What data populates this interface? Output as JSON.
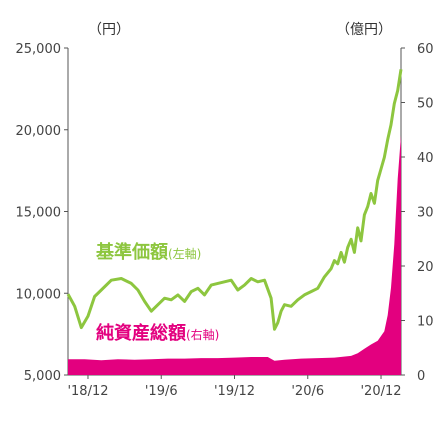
{
  "chart_data": {
    "type": "line",
    "left_axis": {
      "unit": "（円）",
      "ticks": [
        "25,000",
        "20,000",
        "15,000",
        "10,000",
        "5,000"
      ],
      "ylim": [
        5000,
        25000
      ]
    },
    "right_axis": {
      "unit": "（億円）",
      "ticks": [
        "60",
        "50",
        "40",
        "30",
        "20",
        "10",
        "0"
      ],
      "ylim": [
        0,
        60
      ]
    },
    "x_ticks": [
      "'18/12",
      "'19/6",
      "'19/12",
      "'20/6",
      "'20/12"
    ],
    "series": [
      {
        "name": "基準価額",
        "axis_note": "(左軸)",
        "color": "#8dc63f",
        "x": [
          0,
          0.02,
          0.04,
          0.06,
          0.08,
          0.1,
          0.13,
          0.16,
          0.19,
          0.21,
          0.23,
          0.25,
          0.27,
          0.29,
          0.31,
          0.33,
          0.35,
          0.37,
          0.39,
          0.41,
          0.43,
          0.45,
          0.47,
          0.49,
          0.51,
          0.53,
          0.55,
          0.57,
          0.59,
          0.61,
          0.62,
          0.63,
          0.64,
          0.65,
          0.67,
          0.69,
          0.71,
          0.73,
          0.75,
          0.77,
          0.79,
          0.8,
          0.81,
          0.82,
          0.83,
          0.84,
          0.85,
          0.86,
          0.87,
          0.88,
          0.89,
          0.9,
          0.91,
          0.92,
          0.93,
          0.94,
          0.95,
          0.96,
          0.97,
          0.98,
          0.99,
          1.0
        ],
        "values": [
          9950,
          9200,
          7900,
          8600,
          9800,
          10200,
          10800,
          10900,
          10600,
          10200,
          9500,
          8900,
          9300,
          9700,
          9600,
          9900,
          9500,
          10100,
          10300,
          9900,
          10500,
          10600,
          10700,
          10800,
          10200,
          10500,
          10900,
          10700,
          10800,
          9700,
          7800,
          8200,
          8900,
          9300,
          9200,
          9600,
          9900,
          10100,
          10300,
          11000,
          11500,
          12000,
          11800,
          12500,
          11900,
          12800,
          13300,
          12500,
          14000,
          13200,
          14800,
          15300,
          16100,
          15500,
          16900,
          17600,
          18300,
          19400,
          20300,
          21600,
          22400,
          23700
        ]
      },
      {
        "name": "純資産総額",
        "axis_note": "(右軸)",
        "color": "#e3007f",
        "x": [
          0,
          0.05,
          0.1,
          0.15,
          0.2,
          0.25,
          0.3,
          0.35,
          0.4,
          0.45,
          0.5,
          0.55,
          0.6,
          0.62,
          0.65,
          0.7,
          0.75,
          0.8,
          0.85,
          0.87,
          0.89,
          0.91,
          0.93,
          0.95,
          0.96,
          0.97,
          0.98,
          0.99,
          1.0
        ],
        "values": [
          2.9,
          2.9,
          2.7,
          2.9,
          2.8,
          2.9,
          3.0,
          3.0,
          3.1,
          3.1,
          3.2,
          3.3,
          3.3,
          2.6,
          2.8,
          3.0,
          3.1,
          3.2,
          3.5,
          4.0,
          4.8,
          5.6,
          6.3,
          8.0,
          11.0,
          16.0,
          24.0,
          36.0,
          44.0
        ]
      }
    ]
  }
}
